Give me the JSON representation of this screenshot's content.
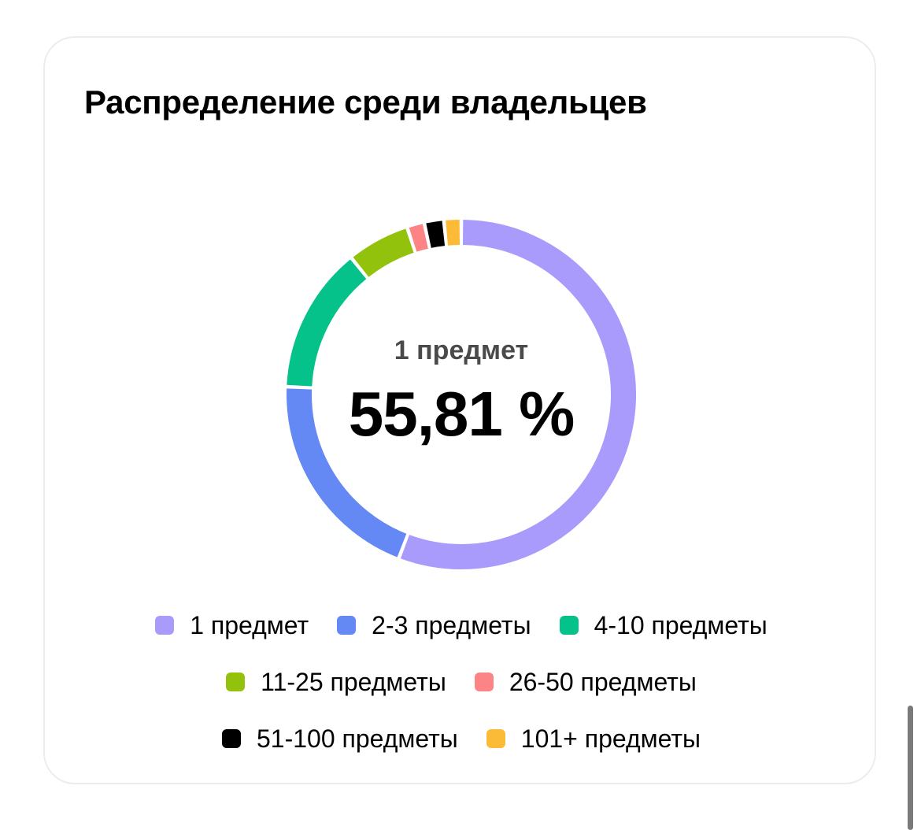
{
  "card": {
    "title": "Распределение среди владельцев",
    "center_label": "1 предмет",
    "center_value": "55,81 %"
  },
  "chart_data": {
    "type": "pie",
    "title": "Распределение среди владельцев",
    "categories": [
      "1 предмет",
      "2-3 предметы",
      "4-10 предметы",
      "11-25 предметы",
      "26-50 предметы",
      "51-100 предметы",
      "101+ предметы"
    ],
    "values": [
      55.81,
      19.9,
      13.5,
      5.8,
      1.6,
      1.8,
      1.59
    ],
    "colors": [
      "#a99bfb",
      "#6489f5",
      "#05c28a",
      "#92c20b",
      "#fc8484",
      "#000000",
      "#fcbb36"
    ],
    "donut": true,
    "legend_position": "bottom"
  },
  "legend_rows": [
    [
      0,
      1,
      2
    ],
    [
      3,
      4
    ],
    [
      5,
      6
    ]
  ]
}
